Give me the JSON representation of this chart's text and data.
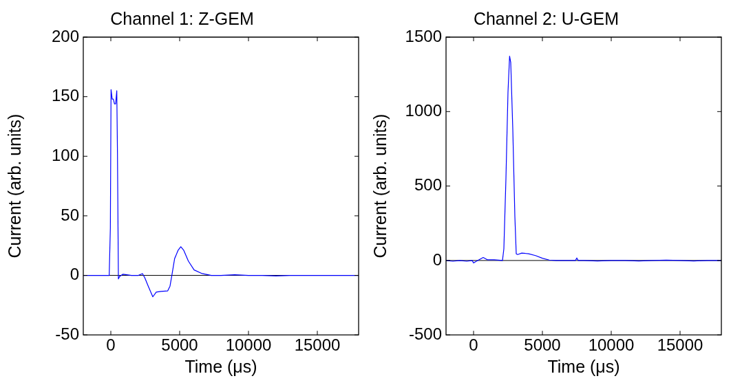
{
  "chart_data": [
    {
      "type": "line",
      "title": "Channel 1: Z-GEM",
      "xlabel": "Time (μs)",
      "ylabel": "Current (arb. units)",
      "xlim": [
        -2000,
        18000
      ],
      "xticks": [
        0,
        5000,
        10000,
        15000
      ],
      "ylim": [
        -50,
        200
      ],
      "yticks": [
        -50,
        0,
        50,
        100,
        150,
        200
      ],
      "grid": false,
      "legend": false,
      "marker": "none",
      "line_style": "solid",
      "ref_lines": [
        {
          "axis": "y",
          "value": 0,
          "color": "#000000"
        }
      ],
      "series": [
        {
          "color": "#0000ff",
          "x": [
            -2000,
            -1500,
            -1000,
            -500,
            -117,
            -33,
            17,
            100,
            183,
            267,
            350,
            433,
            483,
            550,
            633,
            883,
            1500,
            2000,
            2300,
            2467,
            2717,
            3050,
            3300,
            3633,
            4133,
            4300,
            4433,
            4633,
            4883,
            5083,
            5300,
            5633,
            6050,
            6633,
            7300,
            8000,
            9000,
            10000,
            11000,
            12000,
            13000,
            14000,
            15000,
            16000,
            17000,
            18000
          ],
          "values": [
            0,
            0,
            0,
            0,
            0,
            40,
            156,
            148,
            148,
            144,
            144,
            155,
            102,
            -3,
            -1,
            1,
            0,
            0,
            1.5,
            -2,
            -9,
            -18,
            -14,
            -13.5,
            -13,
            -9,
            0,
            14,
            21,
            24,
            21,
            12,
            4.6,
            1.5,
            0,
            0,
            0.5,
            0,
            0,
            -0.5,
            0,
            0,
            0,
            0,
            0,
            0
          ]
        }
      ]
    },
    {
      "type": "line",
      "title": "Channel 2: U-GEM",
      "xlabel": "Time (μs)",
      "ylabel": "Current (arb. units)",
      "xlim": [
        -2000,
        18000
      ],
      "xticks": [
        0,
        5000,
        10000,
        15000
      ],
      "ylim": [
        -500,
        1500
      ],
      "yticks": [
        -500,
        0,
        500,
        1000,
        1500
      ],
      "grid": false,
      "legend": false,
      "marker": "none",
      "line_style": "solid",
      "ref_lines": [
        {
          "axis": "y",
          "value": 0,
          "color": "#000000"
        }
      ],
      "series": [
        {
          "color": "#0000ff",
          "x": [
            -2000,
            -1500,
            -1000,
            -500,
            -100,
            0,
            200,
            700,
            1000,
            1500,
            2100,
            2200,
            2350,
            2500,
            2617,
            2700,
            2850,
            3000,
            3100,
            3200,
            3500,
            4000,
            4500,
            5000,
            5500,
            6000,
            7000,
            7400,
            7500,
            7600,
            8000,
            9000,
            10000,
            11000,
            12000,
            13000,
            14000,
            15000,
            16000,
            17000,
            18000
          ],
          "values": [
            0,
            -5,
            0,
            -5,
            0,
            -17,
            -5,
            20,
            5,
            5,
            0,
            78,
            546,
            1130,
            1372,
            1330,
            880,
            295,
            45,
            40,
            50,
            45,
            33,
            15,
            3,
            0,
            0,
            0,
            17,
            0,
            0,
            -3,
            0,
            0,
            -3,
            0,
            2,
            0,
            -3,
            0,
            0
          ]
        }
      ]
    }
  ]
}
